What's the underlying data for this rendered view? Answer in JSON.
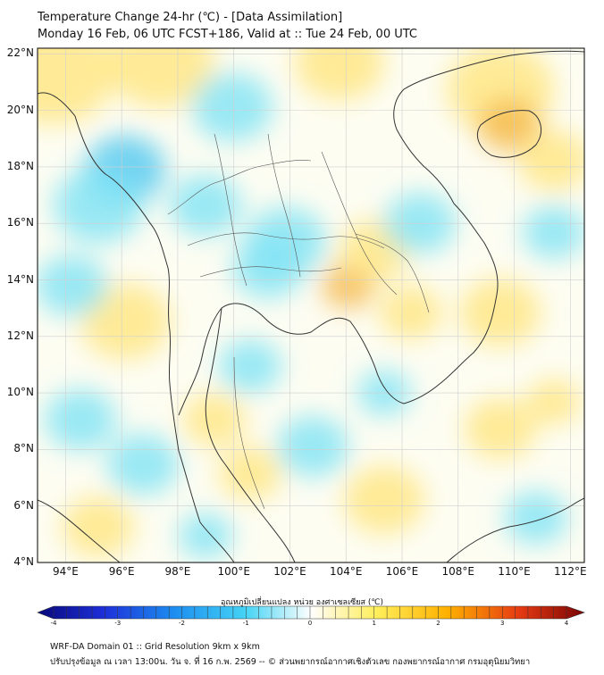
{
  "header": {
    "line1": "Temperature Change 24-hr (℃) - [Data Assimilation]",
    "line2": "Monday 16 Feb, 06 UTC FCST+186, Valid at :: Tue 24 Feb, 00 UTC"
  },
  "map": {
    "lat_labels": [
      "22°N",
      "20°N",
      "18°N",
      "16°N",
      "14°N",
      "12°N",
      "10°N",
      "8°N",
      "6°N",
      "4°N"
    ],
    "lon_labels": [
      "94°E",
      "96°E",
      "98°E",
      "100°E",
      "102°E",
      "104°E",
      "106°E",
      "108°E",
      "110°E",
      "112°E"
    ],
    "extent": {
      "lon": [
        93,
        112.5
      ],
      "lat": [
        4,
        22.2
      ]
    }
  },
  "colorbar": {
    "title": "อุณหภูมิเปลี่ยนแปลง หน่วย องศาเซลเซียส (℃)",
    "ticks": [
      "-4",
      "-3",
      "-2",
      "-1",
      "0",
      "1",
      "2",
      "3",
      "4"
    ],
    "range": [
      -4,
      4
    ]
  },
  "footer": {
    "line1": "WRF-DA Domain 01 :: Grid Resolution 9km x 9km",
    "line2": "ปรับปรุงข้อมูล ณ เวลา 13:00น. วัน จ. ที่ 16 ก.พ. 2569 -- © ส่วนพยากรณ์อากาศเชิงตัวเลข กองพยากรณ์อากาศ กรมอุตุนิยมวิทยา"
  },
  "colors": {
    "warm": "#ffe680",
    "warm_strong": "#f5b84a",
    "cool": "#7fe3f5",
    "cool_strong": "#4cc7f0",
    "coast": "#333333",
    "grid": "#cfcfcf"
  }
}
